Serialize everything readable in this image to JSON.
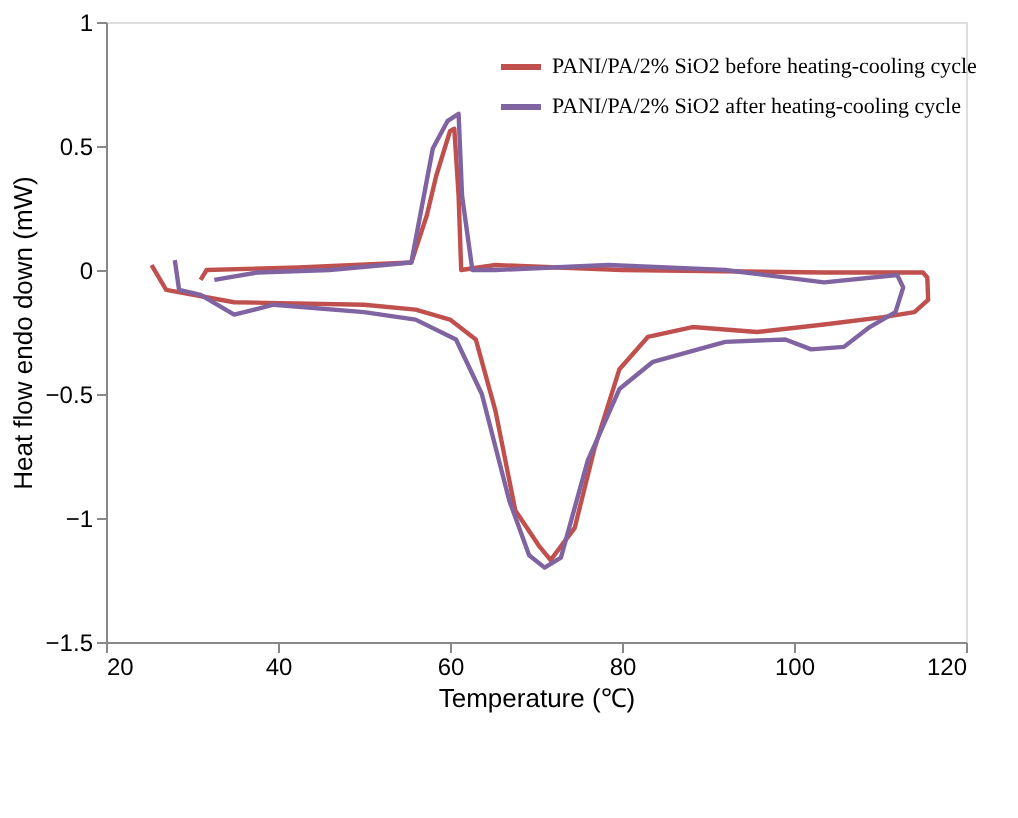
{
  "chart_data": {
    "type": "line",
    "xlabel": "Temperature (℃)",
    "ylabel": "Heat flow endo down (mW)",
    "xlim": [
      20,
      120
    ],
    "xticks": [
      20,
      40,
      60,
      80,
      100,
      120
    ],
    "ylim": [
      -1.5,
      1
    ],
    "yticks": [
      -1.5,
      -1,
      -0.5,
      0,
      0.5,
      1
    ],
    "grid": false,
    "legend": "top right",
    "marker": "none",
    "line_style": "solid",
    "series": [
      {
        "name": "PANI/PA/2% SiO2 before heating-cooling cycle",
        "color": "#c0504d",
        "x": [
          25.3,
          27,
          34.9,
          50,
          56,
          60,
          63,
          65.3,
          67.6,
          70.3,
          71.7,
          74.5,
          76.8,
          79.7,
          83,
          88.2,
          95.7,
          103.5,
          110.4,
          114,
          115.6,
          115.5,
          115,
          103.5,
          80,
          65.3,
          61.3,
          61,
          60.5,
          60,
          58.4,
          57.3,
          55.5,
          42.4,
          31.7,
          31
        ],
        "values": [
          0.02,
          -0.08,
          -0.13,
          -0.14,
          -0.16,
          -0.2,
          -0.28,
          -0.57,
          -0.97,
          -1.11,
          -1.17,
          -1.04,
          -0.72,
          -0.4,
          -0.27,
          -0.23,
          -0.25,
          -0.22,
          -0.19,
          -0.17,
          -0.12,
          -0.03,
          -0.01,
          -0.01,
          0.0,
          0.02,
          0.0,
          0.3,
          0.57,
          0.56,
          0.38,
          0.22,
          0.03,
          0.01,
          0.0,
          -0.04
        ]
      },
      {
        "name": "PANI/PA/2% SiO2 after heating-cooling cycle",
        "color": "#8064a2",
        "x": [
          28,
          28.5,
          31,
          34.9,
          39.5,
          50,
          56,
          60.7,
          63.7,
          66.9,
          69.2,
          71,
          72.9,
          76,
          79.7,
          83.6,
          92,
          99,
          102,
          105.8,
          108.8,
          111.8,
          112.7,
          112,
          103.5,
          92,
          78.4,
          65.3,
          62.6,
          61.4,
          61,
          59.7,
          58,
          55.5,
          46,
          37.6,
          32.6
        ],
        "values": [
          0.04,
          -0.08,
          -0.1,
          -0.18,
          -0.14,
          -0.17,
          -0.2,
          -0.28,
          -0.5,
          -0.93,
          -1.15,
          -1.2,
          -1.16,
          -0.77,
          -0.48,
          -0.37,
          -0.29,
          -0.28,
          -0.32,
          -0.31,
          -0.23,
          -0.17,
          -0.07,
          -0.02,
          -0.05,
          0.0,
          0.02,
          0.0,
          0.0,
          0.3,
          0.63,
          0.6,
          0.49,
          0.03,
          0.0,
          -0.01,
          -0.04
        ]
      }
    ]
  }
}
